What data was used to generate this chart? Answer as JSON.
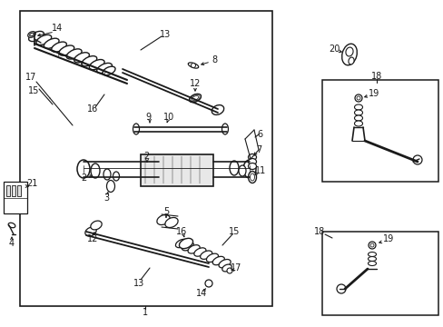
{
  "bg_color": "#ffffff",
  "line_color": "#1a1a1a",
  "fig_width": 4.89,
  "fig_height": 3.6,
  "dpi": 100,
  "fs": 7.0
}
